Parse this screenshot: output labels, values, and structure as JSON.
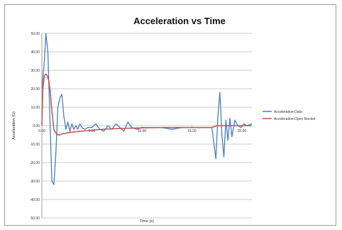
{
  "chart_data": {
    "type": "line",
    "title": "Acceleration vs Time",
    "xlabel": "Time (s)",
    "ylabel": "Acceleration (G)",
    "xlim": [
      0,
      21
    ],
    "ylim": [
      -50,
      50
    ],
    "x_ticks": [
      {
        "value": 0,
        "label": "0.00"
      },
      {
        "value": 5,
        "label": "5.00"
      },
      {
        "value": 10,
        "label": "10.00"
      },
      {
        "value": 15,
        "label": "15.00"
      },
      {
        "value": 20,
        "label": "20.00"
      }
    ],
    "y_ticks": [
      {
        "value": 50,
        "label": "50.00"
      },
      {
        "value": 40,
        "label": "40.00"
      },
      {
        "value": 30,
        "label": "30.00"
      },
      {
        "value": 20,
        "label": "20.00"
      },
      {
        "value": 10,
        "label": "10.00"
      },
      {
        "value": 0,
        "label": "0.00"
      },
      {
        "value": -10,
        "label": "-10.00"
      },
      {
        "value": -20,
        "label": "-20.00"
      },
      {
        "value": -30,
        "label": "-30.00"
      },
      {
        "value": -40,
        "label": "-40.00"
      },
      {
        "value": -50,
        "label": "-50.00"
      }
    ],
    "grid": "horizontal",
    "legend": "right",
    "series": [
      {
        "name": "Acceleration-Data",
        "color": "#4a7ebb",
        "x": [
          0.0,
          0.25,
          0.4,
          0.6,
          0.8,
          1.0,
          1.2,
          1.4,
          1.6,
          1.8,
          2.0,
          2.2,
          2.4,
          2.6,
          2.8,
          3.0,
          3.2,
          3.4,
          3.6,
          3.8,
          4.0,
          4.3,
          4.6,
          5.0,
          5.4,
          5.8,
          6.2,
          6.6,
          7.0,
          7.4,
          7.8,
          8.2,
          8.6,
          9.0,
          9.5,
          10.0,
          11.0,
          12.0,
          13.0,
          14.0,
          15.0,
          16.0,
          17.0,
          17.4,
          17.6,
          17.8,
          18.0,
          18.2,
          18.4,
          18.6,
          18.8,
          19.0,
          19.3,
          19.6,
          19.9,
          20.2,
          20.5,
          21.0
        ],
        "y": [
          20,
          35,
          50,
          40,
          5,
          -30,
          -32,
          -15,
          10,
          15,
          17,
          5,
          -2,
          2,
          -3,
          1,
          -2,
          0,
          -2,
          1,
          -1,
          -2,
          -1,
          -1,
          1,
          -2,
          -3,
          0,
          -2,
          1,
          -1,
          -3,
          2,
          -1,
          -2,
          -1,
          -1,
          -1,
          -2,
          -1,
          -1,
          -1,
          -1,
          -18,
          5,
          18,
          -5,
          -17,
          3,
          -8,
          4,
          -6,
          3,
          0,
          -1,
          1,
          0,
          1
        ]
      },
      {
        "name": "Acceleration-Open Rocket",
        "color": "#c0504d",
        "x": [
          0.0,
          0.1,
          0.25,
          0.4,
          0.55,
          0.7,
          0.85,
          1.0,
          1.2,
          1.4,
          1.6,
          1.8,
          2.0,
          2.5,
          3.0,
          4.0,
          5.0,
          6.0,
          8.0,
          10.0,
          12.0,
          14.0,
          16.0,
          17.0,
          17.5,
          18.0,
          19.0,
          20.0,
          21.0
        ],
        "y": [
          0,
          20,
          27,
          28,
          27,
          24,
          18,
          8,
          -2,
          -4,
          -5,
          -5,
          -4.5,
          -4,
          -3.5,
          -3,
          -2.5,
          -2,
          -1.5,
          -1.2,
          -1,
          -1,
          -1,
          -1,
          0,
          0,
          0,
          0,
          0
        ]
      }
    ]
  }
}
